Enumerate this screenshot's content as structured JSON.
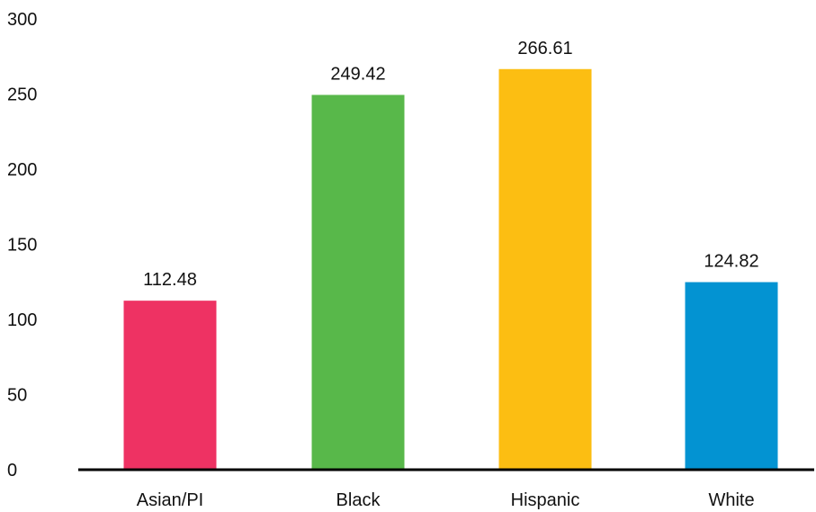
{
  "chart_data": {
    "type": "bar",
    "categories": [
      "Asian/PI",
      "Black",
      "Hispanic",
      "White"
    ],
    "values": [
      112.48,
      249.42,
      266.61,
      124.82
    ],
    "data_labels": [
      "112.48",
      "249.42",
      "266.61",
      "124.82"
    ],
    "colors": [
      "#EE3263",
      "#58B84A",
      "#FCBE12",
      "#0393D2"
    ],
    "ylim": [
      0,
      300
    ],
    "yticks": [
      0,
      50,
      100,
      150,
      200,
      250,
      300
    ],
    "ytick_labels": [
      "0",
      "50",
      "100",
      "150",
      "200",
      "250",
      "300"
    ],
    "title": "",
    "xlabel": "",
    "ylabel": "",
    "grid": false,
    "legend": "none"
  }
}
